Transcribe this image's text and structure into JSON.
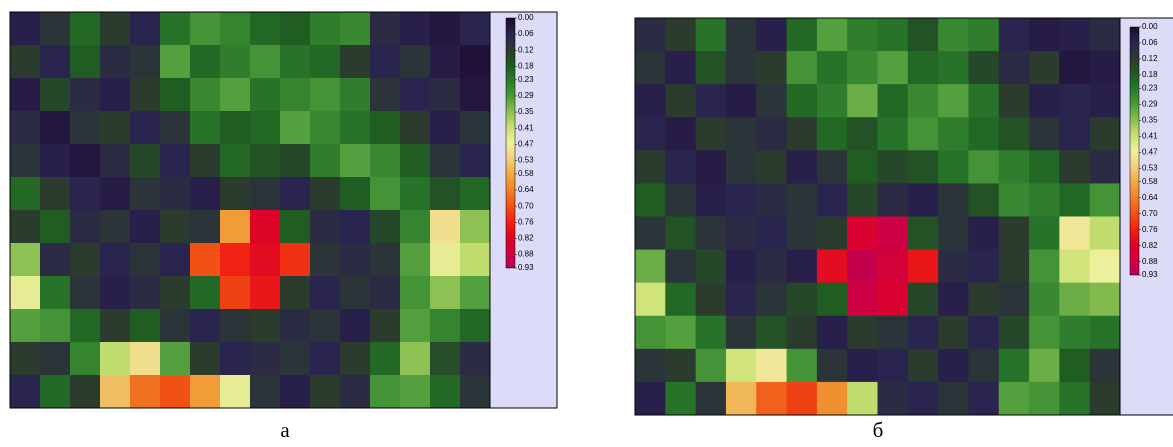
{
  "chart_data": [
    {
      "type": "heatmap",
      "title": "а",
      "values": [
        [
          0.05,
          0.1,
          0.2,
          0.12,
          0.06,
          0.22,
          0.28,
          0.25,
          0.2,
          0.18,
          0.24,
          0.26,
          0.08,
          0.05,
          0.03,
          0.06
        ],
        [
          0.12,
          0.06,
          0.18,
          0.08,
          0.1,
          0.3,
          0.2,
          0.24,
          0.28,
          0.22,
          0.2,
          0.12,
          0.06,
          0.1,
          0.04,
          0.02
        ],
        [
          0.04,
          0.14,
          0.08,
          0.05,
          0.12,
          0.18,
          0.26,
          0.3,
          0.22,
          0.25,
          0.28,
          0.24,
          0.1,
          0.06,
          0.08,
          0.03
        ],
        [
          0.08,
          0.03,
          0.1,
          0.12,
          0.06,
          0.1,
          0.22,
          0.18,
          0.2,
          0.3,
          0.26,
          0.22,
          0.18,
          0.12,
          0.05,
          0.1
        ],
        [
          0.1,
          0.05,
          0.03,
          0.08,
          0.14,
          0.06,
          0.12,
          0.2,
          0.16,
          0.14,
          0.24,
          0.3,
          0.26,
          0.18,
          0.1,
          0.06
        ],
        [
          0.2,
          0.12,
          0.06,
          0.04,
          0.1,
          0.08,
          0.05,
          0.12,
          0.1,
          0.06,
          0.12,
          0.18,
          0.28,
          0.22,
          0.16,
          0.2
        ],
        [
          0.12,
          0.18,
          0.08,
          0.1,
          0.05,
          0.12,
          0.1,
          0.6,
          0.82,
          0.18,
          0.08,
          0.06,
          0.14,
          0.25,
          0.5,
          0.35
        ],
        [
          0.35,
          0.08,
          0.12,
          0.06,
          0.1,
          0.06,
          0.7,
          0.76,
          0.8,
          0.74,
          0.1,
          0.08,
          0.1,
          0.3,
          0.45,
          0.4
        ],
        [
          0.45,
          0.22,
          0.1,
          0.05,
          0.08,
          0.12,
          0.2,
          0.72,
          0.78,
          0.12,
          0.06,
          0.1,
          0.08,
          0.28,
          0.35,
          0.3
        ],
        [
          0.3,
          0.28,
          0.2,
          0.12,
          0.18,
          0.1,
          0.06,
          0.1,
          0.12,
          0.08,
          0.1,
          0.05,
          0.12,
          0.3,
          0.25,
          0.2
        ],
        [
          0.12,
          0.1,
          0.25,
          0.4,
          0.5,
          0.3,
          0.12,
          0.06,
          0.08,
          0.1,
          0.06,
          0.12,
          0.2,
          0.35,
          0.15,
          0.08
        ],
        [
          0.06,
          0.2,
          0.12,
          0.55,
          0.66,
          0.7,
          0.6,
          0.45,
          0.1,
          0.05,
          0.12,
          0.08,
          0.28,
          0.3,
          0.2,
          0.1
        ]
      ],
      "clim": [
        0,
        0.93
      ],
      "colormap": [
        "#1c0a2c",
        "#2a2450",
        "#2c3a30",
        "#1f5a22",
        "#2a7a2c",
        "#4a9a3a",
        "#8cc052",
        "#c8e072",
        "#f0f0a0",
        "#f0d080",
        "#f0a842",
        "#f08226",
        "#f05416",
        "#f02412",
        "#e00424",
        "#d00040",
        "#b80058"
      ],
      "cticks": [
        {
          "value": 0,
          "label": "0.00"
        },
        0.06,
        0.12,
        0.18,
        0.23,
        0.29,
        0.35,
        0.41,
        0.47,
        0.53,
        0.58,
        0.64,
        {
          "value": 0.7,
          "label": "0.70"
        },
        0.76,
        0.82,
        0.88,
        0.93
      ]
    },
    {
      "type": "heatmap",
      "title": "б",
      "values": [
        [
          0.08,
          0.12,
          0.22,
          0.1,
          0.05,
          0.2,
          0.3,
          0.24,
          0.22,
          0.16,
          0.26,
          0.24,
          0.06,
          0.04,
          0.05,
          0.08
        ],
        [
          0.1,
          0.05,
          0.16,
          0.1,
          0.12,
          0.28,
          0.22,
          0.26,
          0.3,
          0.2,
          0.22,
          0.14,
          0.08,
          0.12,
          0.03,
          0.04
        ],
        [
          0.05,
          0.12,
          0.06,
          0.04,
          0.1,
          0.2,
          0.24,
          0.32,
          0.2,
          0.26,
          0.3,
          0.22,
          0.12,
          0.05,
          0.06,
          0.05
        ],
        [
          0.06,
          0.04,
          0.12,
          0.1,
          0.08,
          0.12,
          0.2,
          0.16,
          0.22,
          0.28,
          0.24,
          0.2,
          0.16,
          0.1,
          0.06,
          0.12
        ],
        [
          0.12,
          0.06,
          0.04,
          0.1,
          0.12,
          0.05,
          0.1,
          0.18,
          0.14,
          0.16,
          0.22,
          0.28,
          0.24,
          0.2,
          0.12,
          0.08
        ],
        [
          0.18,
          0.1,
          0.05,
          0.06,
          0.08,
          0.1,
          0.06,
          0.14,
          0.08,
          0.05,
          0.1,
          0.16,
          0.26,
          0.24,
          0.2,
          0.28
        ],
        [
          0.1,
          0.16,
          0.1,
          0.08,
          0.06,
          0.1,
          0.12,
          0.84,
          0.88,
          0.16,
          0.1,
          0.05,
          0.12,
          0.22,
          0.48,
          0.4
        ],
        [
          0.32,
          0.1,
          0.14,
          0.05,
          0.08,
          0.05,
          0.8,
          0.9,
          0.86,
          0.78,
          0.08,
          0.06,
          0.12,
          0.28,
          0.42,
          0.46
        ],
        [
          0.42,
          0.2,
          0.12,
          0.06,
          0.1,
          0.14,
          0.18,
          0.88,
          0.84,
          0.14,
          0.05,
          0.12,
          0.1,
          0.26,
          0.32,
          0.34
        ],
        [
          0.28,
          0.3,
          0.22,
          0.1,
          0.16,
          0.12,
          0.05,
          0.12,
          0.1,
          0.06,
          0.12,
          0.06,
          0.14,
          0.28,
          0.24,
          0.22
        ],
        [
          0.1,
          0.12,
          0.28,
          0.42,
          0.48,
          0.28,
          0.1,
          0.05,
          0.06,
          0.12,
          0.05,
          0.1,
          0.22,
          0.32,
          0.18,
          0.1
        ],
        [
          0.05,
          0.22,
          0.1,
          0.56,
          0.68,
          0.72,
          0.62,
          0.4,
          0.08,
          0.06,
          0.1,
          0.06,
          0.3,
          0.28,
          0.22,
          0.12
        ]
      ],
      "clim": [
        0,
        0.93
      ],
      "colormap": [
        "#1c0a2c",
        "#2a2450",
        "#2c3a30",
        "#1f5a22",
        "#2a7a2c",
        "#4a9a3a",
        "#8cc052",
        "#c8e072",
        "#f0f0a0",
        "#f0d080",
        "#f0a842",
        "#f08226",
        "#f05416",
        "#f02412",
        "#e00424",
        "#d00040",
        "#b80058"
      ],
      "cticks": [
        {
          "value": 0,
          "label": "0.00"
        },
        0.06,
        0.12,
        0.18,
        0.23,
        0.29,
        0.35,
        0.41,
        0.47,
        0.53,
        0.58,
        0.64,
        {
          "value": 0.7,
          "label": "0.70"
        },
        0.76,
        0.82,
        0.88,
        0.93
      ]
    }
  ]
}
